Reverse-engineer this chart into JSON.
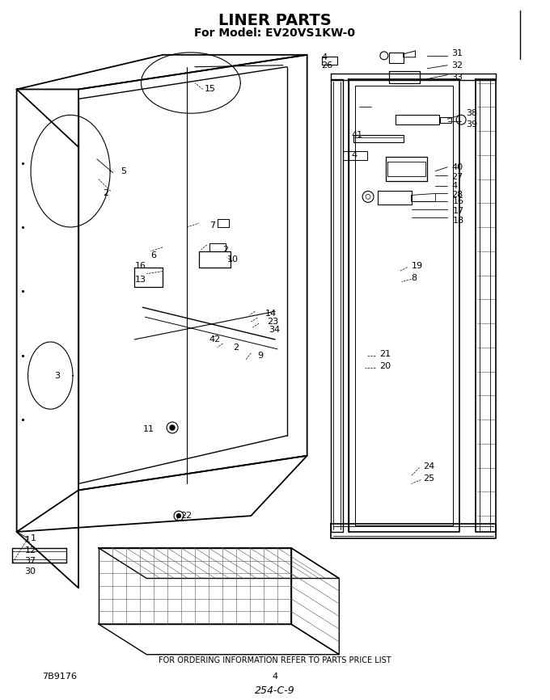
{
  "title": "LINER PARTS",
  "subtitle": "For Model: EV20VS1KW-0",
  "footer_center": "FOR ORDERING INFORMATION REFER TO PARTS PRICE LIST",
  "footer_left": "7B9176",
  "footer_page": "4",
  "footer_code": "254-C-9",
  "bg_color": "#ffffff",
  "figsize": [
    6.8,
    8.66
  ],
  "dpi": 100
}
